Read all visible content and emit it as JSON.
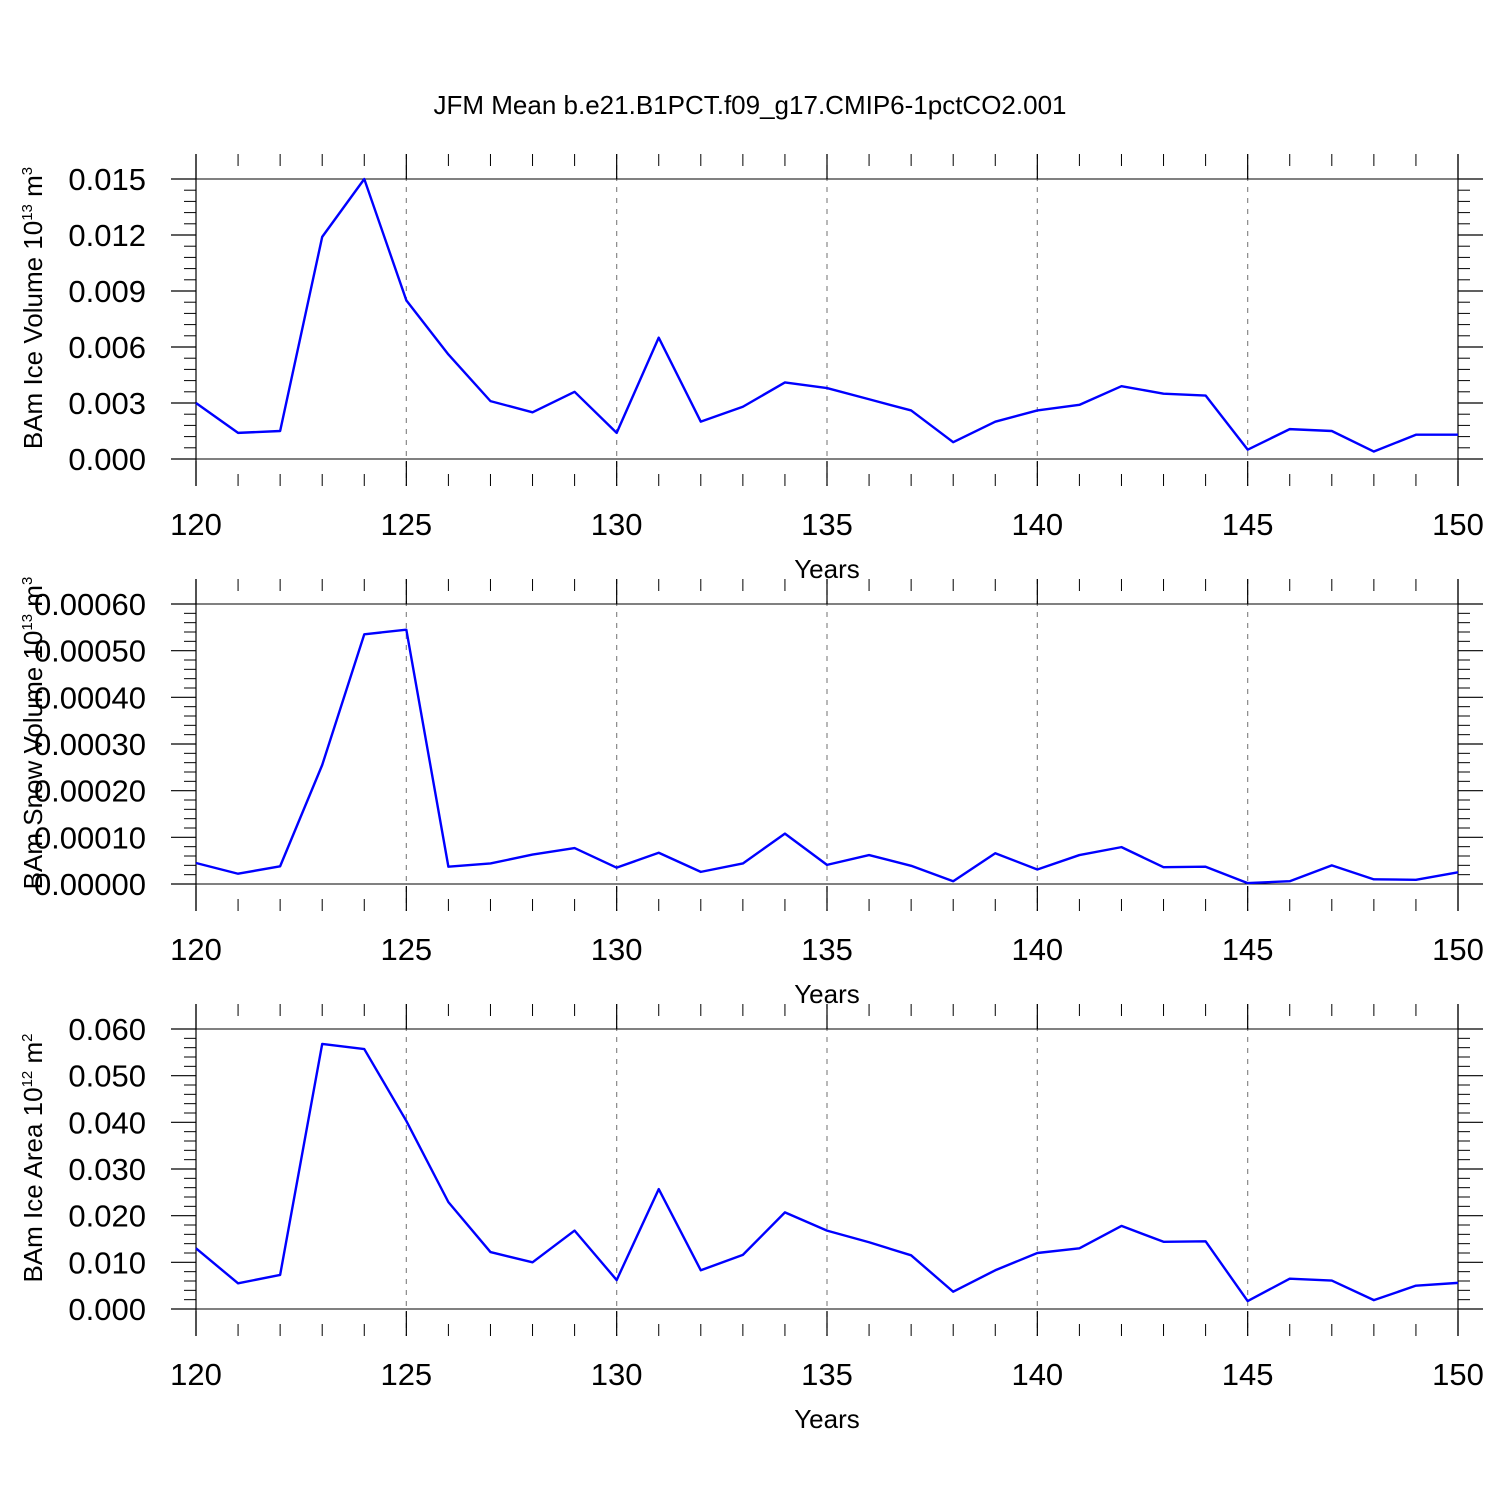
{
  "figure": {
    "title": "JFM Mean b.e21.B1PCT.f09_g17.CMIP6-1pctCO2.001"
  },
  "colors": {
    "series": "#0000ff",
    "axis": "#000000",
    "grid": "#888888"
  },
  "chart_data": [
    {
      "type": "line",
      "title": "",
      "xlabel": "Years",
      "ylabel": "BAm Ice Volume 10",
      "ylabel_exponent": "13",
      "ylabel_unit": " m",
      "ylabel_unit_exponent": "3",
      "xlim": [
        120,
        150
      ],
      "ylim": [
        0,
        0.015
      ],
      "xticks": [
        120,
        125,
        130,
        135,
        140,
        145,
        150
      ],
      "xtick_labels": [
        "120",
        "125",
        "130",
        "135",
        "140",
        "145",
        "150"
      ],
      "yticks": [
        0,
        0.003,
        0.006,
        0.009,
        0.012,
        0.015
      ],
      "ytick_labels": [
        "0.000",
        "0.003",
        "0.006",
        "0.009",
        "0.012",
        "0.015"
      ],
      "grid": "vertical dashed at major x ticks",
      "x": [
        120,
        121,
        122,
        123,
        124,
        125,
        126,
        127,
        128,
        129,
        130,
        131,
        132,
        133,
        134,
        135,
        136,
        137,
        138,
        139,
        140,
        141,
        142,
        143,
        144,
        145,
        146,
        147,
        148,
        149,
        150
      ],
      "series": [
        {
          "values": [
            0.003,
            0.0014,
            0.0015,
            0.0119,
            0.015,
            0.0085,
            0.0056,
            0.0031,
            0.0025,
            0.0036,
            0.0014,
            0.0065,
            0.002,
            0.0028,
            0.0041,
            0.0038,
            0.0032,
            0.0026,
            0.0009,
            0.002,
            0.0026,
            0.0029,
            0.0039,
            0.0035,
            0.0034,
            0.0005,
            0.0016,
            0.0015,
            0.0004,
            0.0013,
            0.0013
          ]
        }
      ]
    },
    {
      "type": "line",
      "title": "",
      "xlabel": "Years",
      "ylabel": "BAm Snow Volume 10",
      "ylabel_exponent": "13",
      "ylabel_unit": " m",
      "ylabel_unit_exponent": "3",
      "xlim": [
        120,
        150
      ],
      "ylim": [
        0,
        0.0006
      ],
      "xticks": [
        120,
        125,
        130,
        135,
        140,
        145,
        150
      ],
      "xtick_labels": [
        "120",
        "125",
        "130",
        "135",
        "140",
        "145",
        "150"
      ],
      "yticks": [
        0,
        0.0001,
        0.0002,
        0.0003,
        0.0004,
        0.0005,
        0.0006
      ],
      "ytick_labels": [
        "0.00000",
        "0.00010",
        "0.00020",
        "0.00030",
        "0.00040",
        "0.00050",
        "0.00060"
      ],
      "grid": "vertical dashed at major x ticks",
      "x": [
        120,
        121,
        122,
        123,
        124,
        125,
        126,
        127,
        128,
        129,
        130,
        131,
        132,
        133,
        134,
        135,
        136,
        137,
        138,
        139,
        140,
        141,
        142,
        143,
        144,
        145,
        146,
        147,
        148,
        149,
        150
      ],
      "series": [
        {
          "values": [
            4.5e-05,
            2.2e-05,
            3.8e-05,
            0.000255,
            0.000535,
            0.000545,
            3.7e-05,
            4.4e-05,
            6.3e-05,
            7.7e-05,
            3.5e-05,
            6.7e-05,
            2.6e-05,
            4.4e-05,
            0.000108,
            4.1e-05,
            6.2e-05,
            3.9e-05,
            6e-06,
            6.6e-05,
            3.1e-05,
            6.2e-05,
            7.9e-05,
            3.6e-05,
            3.7e-05,
            2e-06,
            6e-06,
            4e-05,
            1e-05,
            9e-06,
            2.5e-05
          ]
        }
      ]
    },
    {
      "type": "line",
      "title": "",
      "xlabel": "Years",
      "ylabel": "BAm Ice Area 10",
      "ylabel_exponent": "12",
      "ylabel_unit": " m",
      "ylabel_unit_exponent": "2",
      "xlim": [
        120,
        150
      ],
      "ylim": [
        0,
        0.06
      ],
      "xticks": [
        120,
        125,
        130,
        135,
        140,
        145,
        150
      ],
      "xtick_labels": [
        "120",
        "125",
        "130",
        "135",
        "140",
        "145",
        "150"
      ],
      "yticks": [
        0,
        0.01,
        0.02,
        0.03,
        0.04,
        0.05,
        0.06
      ],
      "ytick_labels": [
        "0.000",
        "0.010",
        "0.020",
        "0.030",
        "0.040",
        "0.050",
        "0.060"
      ],
      "grid": "vertical dashed at major x ticks",
      "x": [
        120,
        121,
        122,
        123,
        124,
        125,
        126,
        127,
        128,
        129,
        130,
        131,
        132,
        133,
        134,
        135,
        136,
        137,
        138,
        139,
        140,
        141,
        142,
        143,
        144,
        145,
        146,
        147,
        148,
        149,
        150
      ],
      "series": [
        {
          "values": [
            0.013,
            0.0055,
            0.0073,
            0.0568,
            0.0557,
            0.0403,
            0.0229,
            0.0122,
            0.01,
            0.0168,
            0.0062,
            0.0257,
            0.0083,
            0.0116,
            0.0207,
            0.0168,
            0.0143,
            0.0115,
            0.0037,
            0.0083,
            0.012,
            0.013,
            0.0178,
            0.0144,
            0.0145,
            0.0017,
            0.0065,
            0.0061,
            0.0019,
            0.005,
            0.0056
          ]
        }
      ]
    }
  ]
}
